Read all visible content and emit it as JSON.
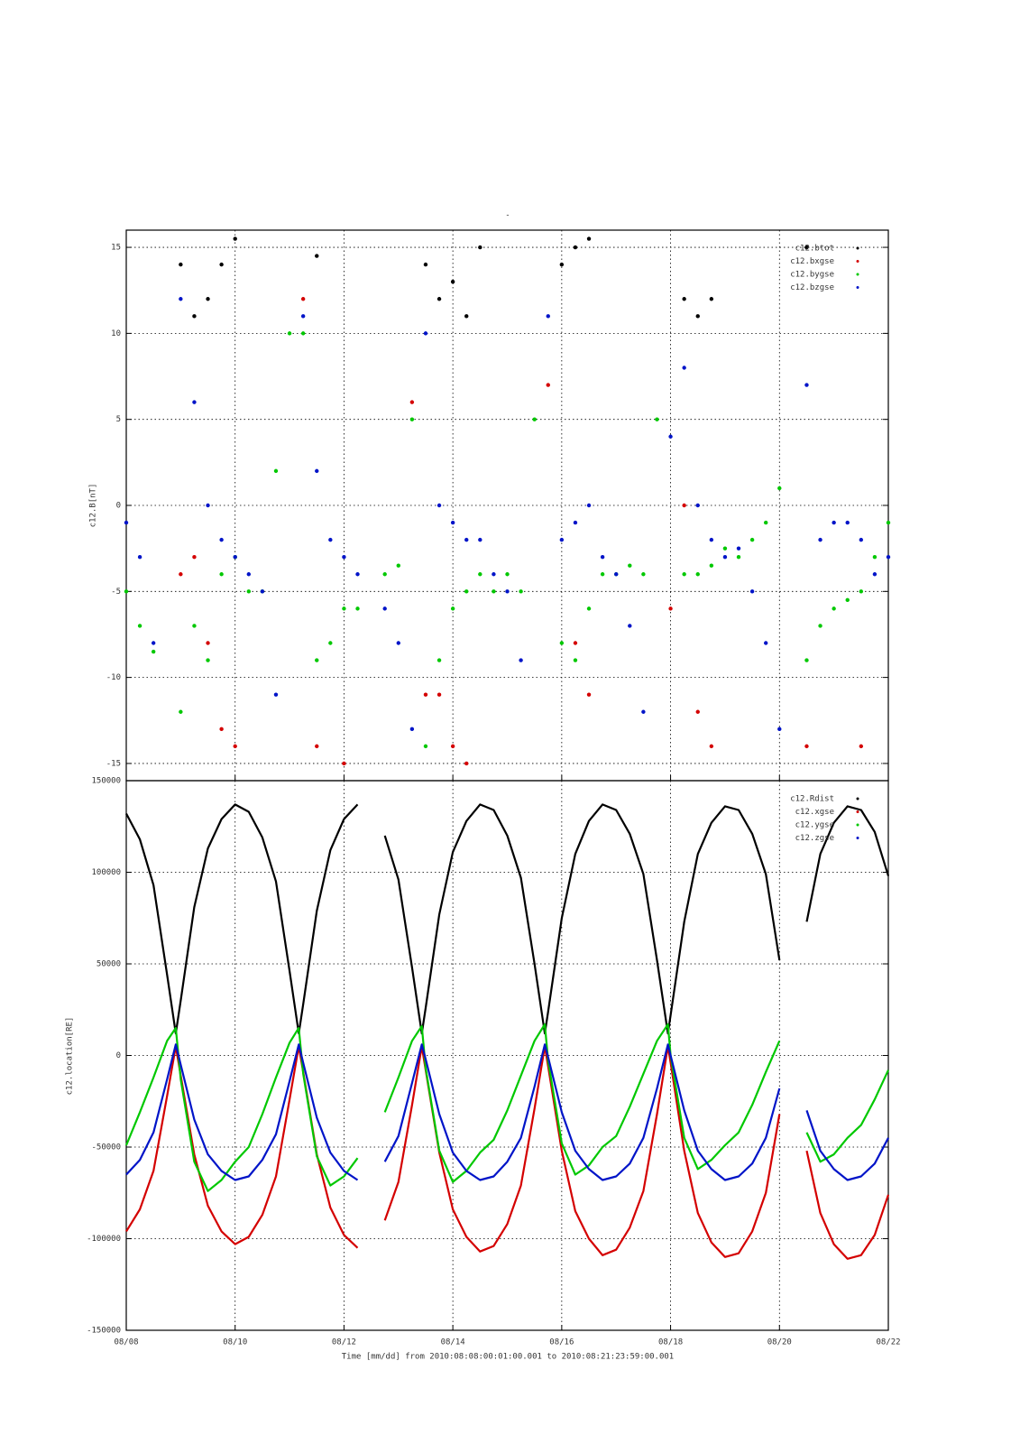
{
  "chart_data": [
    {
      "type": "scatter",
      "title": "-",
      "ylabel": "c12.B[nT]",
      "x": [
        0,
        0.25,
        0.5,
        0.75,
        1,
        1.25,
        1.5,
        1.75,
        2,
        2.25,
        2.5,
        2.75,
        3,
        3.25,
        3.5,
        3.75,
        4,
        4.25,
        4.5,
        4.75,
        5,
        5.25,
        5.5,
        5.75,
        6,
        6.25,
        6.5,
        6.75,
        7,
        7.25,
        7.5,
        7.75,
        8,
        8.25,
        8.5,
        8.75,
        9,
        9.25,
        9.5,
        9.75,
        10,
        10.25,
        10.5,
        10.75,
        11,
        11.25,
        11.5,
        11.75,
        12,
        12.25,
        12.5,
        12.75,
        13,
        13.25,
        13.5,
        13.75,
        14
      ],
      "xlim": [
        0,
        14
      ],
      "ylim": [
        -16,
        16
      ],
      "yticks": [
        -15,
        -10,
        -5,
        0,
        5,
        10,
        15
      ],
      "grid": true,
      "legend": "top-right",
      "series": [
        {
          "name": "c12.btot",
          "color": "#000000",
          "values": [
            null,
            null,
            null,
            null,
            14,
            11,
            12,
            14,
            15.5,
            null,
            null,
            null,
            null,
            null,
            14.5,
            null,
            null,
            null,
            null,
            null,
            null,
            null,
            14,
            12,
            13,
            11,
            15,
            null,
            null,
            null,
            null,
            null,
            14,
            15,
            15.5,
            null,
            null,
            null,
            null,
            null,
            null,
            12,
            11,
            12,
            null,
            null,
            null,
            null,
            null,
            null,
            15,
            null,
            null,
            null,
            null,
            null,
            null
          ]
        },
        {
          "name": "c12.bxgse",
          "color": "#d40000",
          "values": [
            null,
            null,
            null,
            null,
            -4,
            -3,
            -8,
            -13,
            -14,
            null,
            null,
            null,
            null,
            12,
            -14,
            null,
            -15,
            null,
            null,
            null,
            null,
            6,
            -11,
            -11,
            -14,
            -15,
            null,
            null,
            null,
            null,
            null,
            7,
            null,
            -8,
            -11,
            null,
            null,
            null,
            null,
            null,
            -6,
            0,
            -12,
            -14,
            null,
            null,
            null,
            null,
            null,
            null,
            -14,
            null,
            null,
            null,
            -14,
            null,
            null
          ]
        },
        {
          "name": "c12.bygse",
          "color": "#00c800",
          "values": [
            -5,
            -7,
            -8.5,
            null,
            -12,
            -7,
            -9,
            -4,
            -3,
            -5,
            -5,
            2,
            10,
            10,
            -9,
            -8,
            -6,
            -6,
            null,
            -4,
            -3.5,
            5,
            -14,
            -9,
            -6,
            -5,
            -4,
            -5,
            -4,
            -5,
            5,
            null,
            -8,
            -9,
            -6,
            -4,
            -4,
            -3.5,
            -4,
            5,
            null,
            -4,
            -4,
            -3.5,
            -2.5,
            -3,
            -2,
            -1,
            1,
            null,
            -9,
            -7,
            -6,
            -5.5,
            -5,
            -3,
            -1
          ]
        },
        {
          "name": "c12.bzgse",
          "color": "#0014c8",
          "values": [
            -1,
            -3,
            -8,
            null,
            12,
            6,
            0,
            -2,
            -3,
            -4,
            -5,
            -11,
            null,
            11,
            2,
            -2,
            -3,
            -4,
            null,
            -6,
            -8,
            -13,
            10,
            0,
            -1,
            -2,
            -2,
            -4,
            -5,
            -9,
            null,
            11,
            -2,
            -1,
            0,
            -3,
            -4,
            -7,
            -12,
            null,
            4,
            8,
            0,
            -2,
            -3,
            -2.5,
            -5,
            -8,
            -13,
            null,
            7,
            -2,
            -1,
            -1,
            -2,
            -4,
            -3
          ]
        }
      ]
    },
    {
      "type": "line",
      "ylabel": "c12.location[RE]",
      "xlabel": "Time [mm/dd]  from 2010:08:08:00:01:00.001  to  2010:08:21:23:59:00.001",
      "x": [
        0,
        0.25,
        0.5,
        0.75,
        0.91,
        1,
        1.25,
        1.5,
        1.75,
        2,
        2.25,
        2.5,
        2.75,
        3,
        3.17,
        3.25,
        3.5,
        3.75,
        4,
        4.25,
        4.5,
        4.75,
        5,
        5.25,
        5.43,
        5.5,
        5.75,
        6,
        6.25,
        6.5,
        6.75,
        7,
        7.25,
        7.5,
        7.69,
        7.75,
        8,
        8.25,
        8.5,
        8.75,
        9,
        9.25,
        9.5,
        9.75,
        9.95,
        10,
        10.25,
        10.5,
        10.75,
        11,
        11.25,
        11.5,
        11.75,
        12,
        12.25,
        12.5,
        12.75,
        13,
        13.25,
        13.5,
        13.75,
        14
      ],
      "xlim": [
        0,
        14
      ],
      "xticks": [
        {
          "value": 0,
          "label": "08/08"
        },
        {
          "value": 2,
          "label": "08/10"
        },
        {
          "value": 4,
          "label": "08/12"
        },
        {
          "value": 6,
          "label": "08/14"
        },
        {
          "value": 8,
          "label": "08/16"
        },
        {
          "value": 10,
          "label": "08/18"
        },
        {
          "value": 12,
          "label": "08/20"
        },
        {
          "value": 14,
          "label": "08/22"
        }
      ],
      "ylim": [
        -150000,
        150000
      ],
      "yticks": [
        -150000,
        -100000,
        -50000,
        0,
        50000,
        100000,
        150000
      ],
      "grid": true,
      "legend": "top-right",
      "series": [
        {
          "name": "c12.Rdist",
          "color": "#000000",
          "values": [
            132000,
            118000,
            93000,
            44000,
            12000,
            30000,
            81000,
            113000,
            129000,
            137000,
            133000,
            119000,
            95000,
            46000,
            12000,
            28000,
            79000,
            112000,
            129000,
            137000,
            null,
            120000,
            96000,
            48000,
            12000,
            26000,
            77000,
            111000,
            128000,
            137000,
            134000,
            120000,
            97000,
            50000,
            12000,
            24000,
            75000,
            110000,
            128000,
            137000,
            134000,
            121000,
            99000,
            52000,
            12000,
            22000,
            73000,
            110000,
            127000,
            136000,
            134000,
            121000,
            99000,
            52000,
            null,
            73000,
            110000,
            127000,
            136000,
            134000,
            122000,
            98000
          ]
        },
        {
          "name": "c12.xgse",
          "color": "#d40000",
          "values": [
            -96000,
            -84000,
            -63000,
            -22000,
            5000,
            -11000,
            -54000,
            -82000,
            -96000,
            -103000,
            -99000,
            -87000,
            -66000,
            -24000,
            5000,
            -9000,
            -54000,
            -83000,
            -98000,
            -105000,
            null,
            -90000,
            -69000,
            -27000,
            5000,
            -8000,
            -53000,
            -84000,
            -99000,
            -107000,
            -104000,
            -92000,
            -71000,
            -29000,
            5000,
            -6000,
            -52000,
            -85000,
            -100000,
            -109000,
            -106000,
            -94000,
            -74000,
            -32000,
            5000,
            -4000,
            -52000,
            -86000,
            -102000,
            -110000,
            -108000,
            -96000,
            -75000,
            -32000,
            null,
            -52000,
            -86000,
            -103000,
            -111000,
            -109000,
            -98000,
            -76000
          ]
        },
        {
          "name": "c12.ygse",
          "color": "#00c800",
          "values": [
            -49000,
            -31000,
            -12000,
            8000,
            15000,
            -13000,
            -58000,
            -74000,
            -68000,
            -58000,
            -50000,
            -32000,
            -12000,
            7000,
            15000,
            -10000,
            -55000,
            -71000,
            -66000,
            -56000,
            null,
            -31000,
            -12000,
            8000,
            16000,
            -7000,
            -52000,
            -69000,
            -63000,
            -53000,
            -46000,
            -30000,
            -11000,
            8000,
            17000,
            -3000,
            -48000,
            -65000,
            -60000,
            -50000,
            -44000,
            -28000,
            -10000,
            8000,
            17000,
            0,
            -45000,
            -62000,
            -57000,
            -49000,
            -42000,
            -27000,
            -9000,
            8000,
            null,
            -42000,
            -58000,
            -54000,
            -45000,
            -38000,
            -24000,
            -8000
          ]
        },
        {
          "name": "c12.zgse",
          "color": "#0014c8",
          "values": [
            -65000,
            -57000,
            -42000,
            -13000,
            6000,
            -5000,
            -35000,
            -54000,
            -63000,
            -68000,
            -66000,
            -57000,
            -43000,
            -14000,
            6000,
            -4000,
            -34000,
            -53000,
            -63000,
            -68000,
            null,
            -58000,
            -44000,
            -15000,
            6000,
            -2000,
            -32000,
            -53000,
            -63000,
            -68000,
            -66000,
            -58000,
            -45000,
            -17000,
            6000,
            -1000,
            -31000,
            -52000,
            -62000,
            -68000,
            -66000,
            -59000,
            -45000,
            -18000,
            6000,
            0,
            -30000,
            -52000,
            -62000,
            -68000,
            -66000,
            -59000,
            -45000,
            -18000,
            null,
            -30000,
            -52000,
            -62000,
            -68000,
            -66000,
            -59000,
            -45000
          ]
        }
      ]
    }
  ]
}
